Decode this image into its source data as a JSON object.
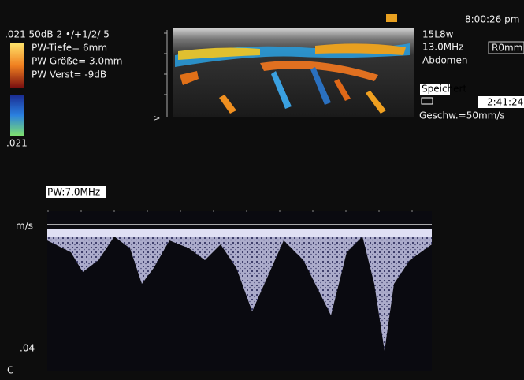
{
  "header": {
    "left_line": ".021 50dB  2 •/+1/2/ 5",
    "settings": [
      "PW-Tiefe=  6mm",
      "PW Größe= 3.0mm",
      "PW Verst= -9dB"
    ],
    "scale_bottom": ".021"
  },
  "info": {
    "time": "8:00:26 pm",
    "probe": "15L8w",
    "frequency": "13.0MHz",
    "offset": "R0mm",
    "preset": "Abdomen",
    "status": "Speichert",
    "clip_time": "2:41:24",
    "sweep": "Geschw.=50mm/s"
  },
  "spectral": {
    "label": "PW:7.0MHz",
    "unit": "m/s",
    "scale_label": ".04",
    "corner": "C"
  }
}
